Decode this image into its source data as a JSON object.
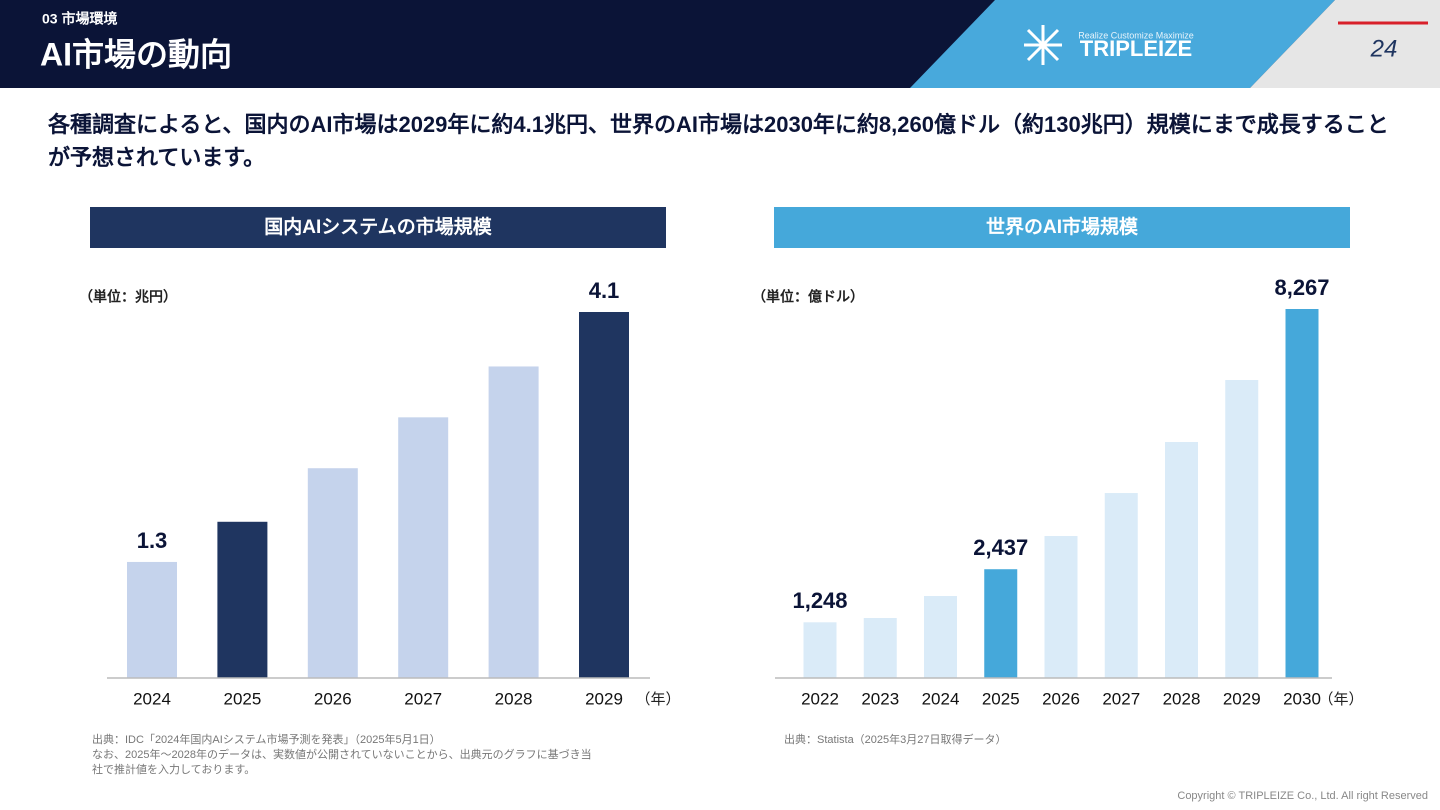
{
  "header": {
    "section": "03 市場環境",
    "title": "AI市場の動向",
    "page": "24"
  },
  "logo": {
    "tagline": "Realize Customize Maximize",
    "name": "TRIPLEIZE"
  },
  "lead": "各種調査によると、国内のAI市場は2029年に約4.1兆円、世界のAI市場は2030年に約8,260億ドル（約130兆円）規模にまで成長することが予想されています。",
  "chart_data": [
    {
      "type": "bar",
      "title": "国内AIシステムの市場規模",
      "y_label": "（単位：兆円）",
      "x_label": "（年）",
      "categories": [
        "2024",
        "2025",
        "2026",
        "2027",
        "2028",
        "2029"
      ],
      "values": [
        1.3,
        1.75,
        2.35,
        2.92,
        3.49,
        4.1
      ],
      "value_labels": [
        "1.3",
        null,
        null,
        null,
        null,
        "4.1"
      ],
      "colors": [
        "#c5d3ec",
        "#1f3560",
        "#c5d3ec",
        "#c5d3ec",
        "#c5d3ec",
        "#1f3560"
      ],
      "title_color": "#1f3560",
      "source": [
        "出典：IDC「2024年国内AIシステム市場予測を発表」（2025年5月1日）",
        "なお、2025年～2028年のデータは、実数値が公開されていないことから、出典元のグラフに基づき当",
        "社で推計値を入力しております。"
      ]
    },
    {
      "type": "bar",
      "title": "世界のAI市場規模",
      "y_label": "（単位：億ドル）",
      "x_label": "（年）",
      "categories": [
        "2022",
        "2023",
        "2024",
        "2025",
        "2026",
        "2027",
        "2028",
        "2029",
        "2030"
      ],
      "values": [
        1248,
        1344,
        1837,
        2437,
        3181,
        4144,
        5287,
        6676,
        8267
      ],
      "value_labels": [
        "1,248",
        null,
        null,
        "2,437",
        null,
        null,
        null,
        null,
        "8,267"
      ],
      "colors": [
        "#daebf8",
        "#daebf8",
        "#daebf8",
        "#45a8da",
        "#daebf8",
        "#daebf8",
        "#daebf8",
        "#daebf8",
        "#45a8da"
      ],
      "title_color": "#45a8da",
      "source": [
        "出典：Statista（2025年3月27日取得データ）"
      ]
    }
  ],
  "copyright": "Copyright © TRIPLEIZE Co., Ltd.  All right Reserved"
}
